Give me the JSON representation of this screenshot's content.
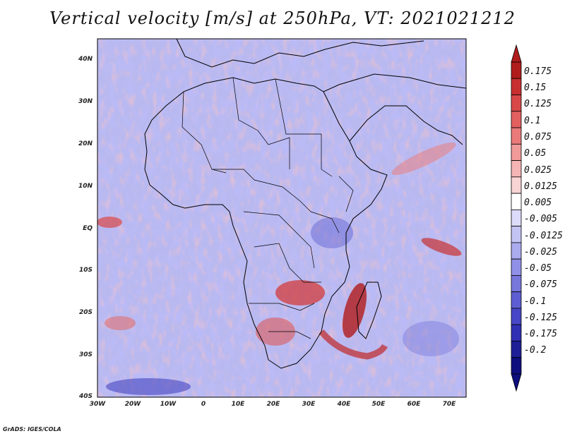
{
  "title": "Vertical velocity [m/s] at 250hPa, VT: 2021021212",
  "credit": "GrADS: IGES/COLA",
  "axes": {
    "y_labels": [
      "40N",
      "30N",
      "20N",
      "10N",
      "EQ",
      "10S",
      "20S",
      "30S",
      "40S"
    ],
    "x_labels": [
      "30W",
      "20W",
      "10W",
      "0",
      "10E",
      "20E",
      "30E",
      "40E",
      "50E",
      "60E",
      "70E"
    ]
  },
  "colorbar": {
    "labels": [
      "0.175",
      "0.15",
      "0.125",
      "0.1",
      "0.075",
      "0.05",
      "0.025",
      "0.0125",
      "0.005",
      "-0.005",
      "-0.0125",
      "-0.025",
      "-0.05",
      "-0.075",
      "-0.1",
      "-0.125",
      "-0.175",
      "-0.2"
    ],
    "colors": [
      "#b01c1c",
      "#c73030",
      "#d84848",
      "#e26060",
      "#ea7a7a",
      "#f09a9a",
      "#f5b5b5",
      "#f9d4d4",
      "#ffffff",
      "#dcdcfa",
      "#c4c4f4",
      "#aaaaee",
      "#9090e6",
      "#7777dc",
      "#5e5ed2",
      "#4646c6",
      "#3030b4",
      "#1e1e96",
      "#0e0e7e"
    ],
    "colors_note": ""
  }
}
